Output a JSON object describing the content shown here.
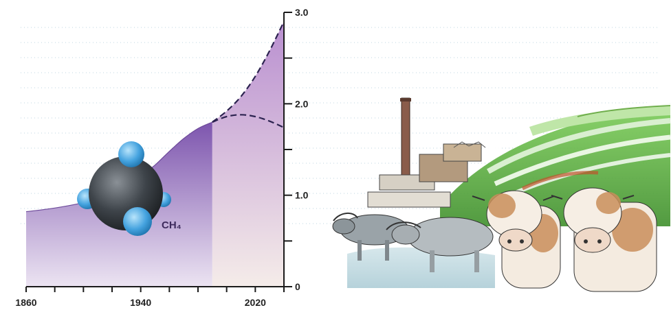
{
  "chart_data": {
    "type": "area",
    "x_ticks": [
      1860,
      1940,
      2020
    ],
    "y_ticks": [
      0,
      1.0,
      2.0,
      3.0
    ],
    "y_tick_labels": [
      "0",
      "1.0",
      "2.0",
      "3.0"
    ],
    "x_tick_labels": [
      "1860",
      "1940",
      "2020"
    ],
    "xlim": [
      1860,
      2040
    ],
    "ylim": [
      0,
      3.0
    ],
    "y_axis_side": "right",
    "grid": false,
    "series": [
      {
        "values_x": [
          1860,
          1880,
          1900,
          1910,
          1920,
          1930,
          1940,
          1950,
          1960,
          1970,
          1980,
          1990
        ],
        "values_y": [
          0.82,
          0.86,
          0.92,
          0.98,
          1.04,
          1.12,
          1.21,
          1.33,
          1.48,
          1.62,
          1.73,
          1.8
        ],
        "style": "solid"
      },
      {
        "values_x": [
          1990,
          2000,
          2010,
          2020,
          2030,
          2040
        ],
        "values_y": [
          1.8,
          1.92,
          2.08,
          2.3,
          2.58,
          2.9
        ],
        "style": "dashed"
      },
      {
        "values_x": [
          1990,
          2000,
          2010,
          2020,
          2030,
          2040
        ],
        "values_y": [
          1.8,
          1.86,
          1.88,
          1.86,
          1.81,
          1.74
        ],
        "style": "dashed"
      }
    ],
    "projection_start_x": 1990
  },
  "molecule": {
    "label": "CH₄",
    "icon": "methane-molecule-icon",
    "colors": {
      "carbon": "#3a3f44",
      "hydrogen": "#4ba8e0"
    }
  },
  "illustration": {
    "subjects": [
      "factory-smokestack",
      "terraced-rice-fields",
      "water-buffalo",
      "cows"
    ]
  },
  "colors": {
    "area_past": "#8a62b6",
    "area_past_light": "#e7dcf0",
    "area_future": "#c9a8d9",
    "area_future_light": "#f2e8ef",
    "axis": "#1a1a1a",
    "dashed": "#2c2350"
  }
}
